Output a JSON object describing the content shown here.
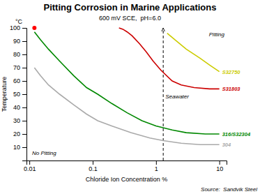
{
  "chart_data": {
    "type": "line",
    "title": "Pitting Corrosion in Marine Applications",
    "subtitle": "600 mV SCE,  pH=6.0",
    "x_label": "Chloride Ion Concentration %",
    "y_label": "Temperature",
    "y_unit": "°C",
    "source": "Source:  Sandvik Steel",
    "log": "x",
    "xlim": [
      0.009,
      13
    ],
    "xticks": [
      0.01,
      0.1,
      1,
      10
    ],
    "ylim": [
      0,
      100
    ],
    "yticks": [
      10,
      20,
      30,
      40,
      50,
      60,
      70,
      80,
      90,
      100
    ],
    "series": [
      {
        "name": "S31803",
        "color": "#cc0000",
        "x": [
          0.26,
          0.3,
          0.35,
          0.42,
          0.55,
          0.7,
          0.9,
          1.2,
          1.8,
          2.5,
          4.0,
          7.0,
          10.0
        ],
        "values": [
          100,
          99,
          97,
          94,
          88,
          82,
          75,
          68,
          60,
          57,
          55,
          54,
          54
        ]
      },
      {
        "name": "S32750",
        "color": "#cccc00",
        "x": [
          1.5,
          2.0,
          3.0,
          5.0,
          7.0,
          10.0
        ],
        "values": [
          96,
          91,
          84,
          77,
          72,
          67
        ]
      },
      {
        "name": "316/S32304",
        "color": "#008800",
        "x": [
          0.012,
          0.015,
          0.02,
          0.03,
          0.05,
          0.08,
          0.12,
          0.2,
          0.35,
          0.6,
          1.0,
          1.8,
          3.0,
          6.0,
          10.0
        ],
        "values": [
          97,
          91,
          84,
          75,
          64,
          55,
          50,
          43,
          36,
          30,
          26,
          23,
          21,
          20,
          20
        ]
      },
      {
        "name": "304",
        "color": "#aaaaaa",
        "x": [
          0.012,
          0.015,
          0.02,
          0.03,
          0.05,
          0.08,
          0.12,
          0.2,
          0.4,
          0.8,
          1.3,
          2.5,
          5.0,
          10.0
        ],
        "values": [
          70,
          64,
          57,
          50,
          42,
          35,
          30,
          26,
          21,
          17,
          15,
          13,
          12,
          12
        ]
      }
    ],
    "reference_lines": [
      {
        "x": 1.3,
        "label": "Seawater",
        "line_style": "dashed"
      }
    ],
    "markers": [
      {
        "x": 0.012,
        "y": 100,
        "color": "red"
      }
    ],
    "annotations": [
      {
        "text": "Pitting"
      },
      {
        "text": "No Pitting"
      }
    ]
  }
}
